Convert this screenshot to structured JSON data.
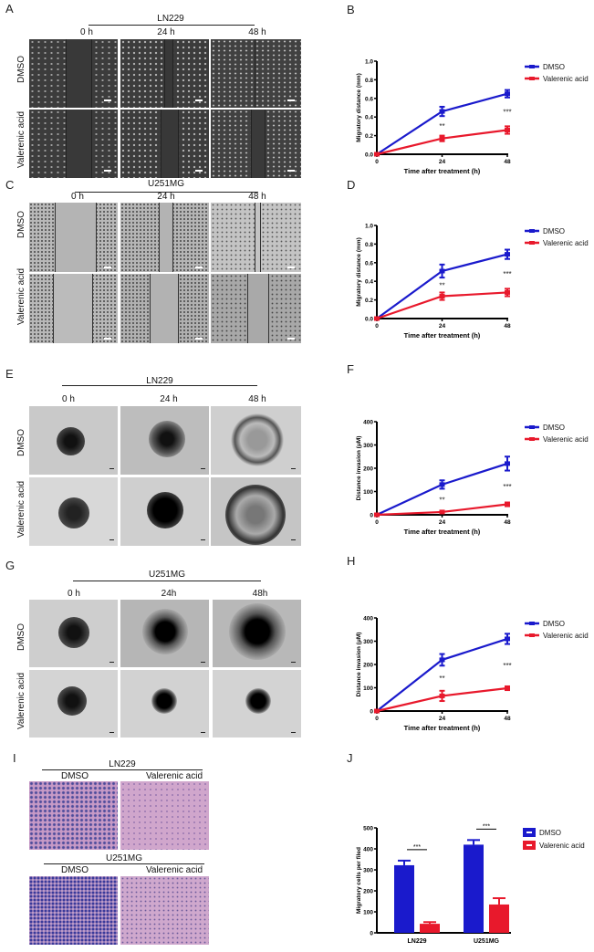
{
  "figure": {
    "panels": {
      "A": {
        "letter": "A",
        "cell_line": "LN229",
        "times": [
          "0 h",
          "24 h",
          "48 h"
        ],
        "rows": [
          "DMSO",
          "Valerenic acid"
        ],
        "assay": "wound healing (fluorescent)"
      },
      "B": {
        "letter": "B"
      },
      "C": {
        "letter": "C",
        "cell_line": "U251MG",
        "times": [
          "0 h",
          "24 h",
          "48 h"
        ],
        "rows": [
          "DMSO",
          "Valerenic acid"
        ],
        "assay": "wound healing (brightfield)"
      },
      "D": {
        "letter": "D"
      },
      "E": {
        "letter": "E",
        "cell_line": "LN229",
        "times": [
          "0 h",
          "24 h",
          "48 h"
        ],
        "rows": [
          "DMSO",
          "Valerenic acid"
        ],
        "assay": "spheroid invasion"
      },
      "F": {
        "letter": "F"
      },
      "G": {
        "letter": "G",
        "cell_line": "U251MG",
        "times": [
          "0 h",
          "24h",
          "48h"
        ],
        "rows": [
          "DMSO",
          "Valerenic acid"
        ],
        "assay": "spheroid invasion"
      },
      "H": {
        "letter": "H"
      },
      "I": {
        "letter": "I",
        "groups": [
          {
            "cell_line": "LN229",
            "columns": [
              "DMSO",
              "Valerenic acid"
            ]
          },
          {
            "cell_line": "U251MG",
            "columns": [
              "DMSO",
              "Valerenic acid"
            ]
          }
        ],
        "assay": "transwell (crystal violet)"
      },
      "J": {
        "letter": "J"
      }
    },
    "colors": {
      "dmso": "#1a1acc",
      "valerenic": "#e8192c"
    }
  },
  "chart_data": [
    {
      "panel": "B",
      "type": "line",
      "title": "",
      "xlabel": "Time after treatment (h)",
      "ylabel": "Migratory distance (mm)",
      "x": [
        0,
        24,
        48
      ],
      "xticks": [
        "0",
        "24",
        "48"
      ],
      "ylim": [
        0,
        1.0
      ],
      "yticks": [
        "0.0",
        "0.2",
        "0.4",
        "0.6",
        "0.8",
        "1.0"
      ],
      "series": [
        {
          "name": "DMSO",
          "values": [
            0,
            0.46,
            0.65
          ],
          "errors": [
            0,
            0.05,
            0.04
          ],
          "color": "#1a1acc"
        },
        {
          "name": "Valerenic acid",
          "values": [
            0,
            0.17,
            0.26
          ],
          "errors": [
            0,
            0.03,
            0.04
          ],
          "color": "#e8192c"
        }
      ],
      "annotations": [
        {
          "x": 24,
          "text": "**"
        },
        {
          "x": 48,
          "text": "***"
        }
      ],
      "legend": {
        "position": "right",
        "entries": [
          "DMSO",
          "Valerenic acid"
        ]
      },
      "grid": false
    },
    {
      "panel": "D",
      "type": "line",
      "title": "",
      "xlabel": "Time after treatment (h)",
      "ylabel": "Migratory distance (mm)",
      "x": [
        0,
        24,
        48
      ],
      "xticks": [
        "0",
        "24",
        "48"
      ],
      "ylim": [
        0,
        1.0
      ],
      "yticks": [
        "0.0",
        "0.2",
        "0.4",
        "0.6",
        "0.8",
        "1.0"
      ],
      "series": [
        {
          "name": "DMSO",
          "values": [
            0,
            0.51,
            0.69
          ],
          "errors": [
            0,
            0.07,
            0.05
          ],
          "color": "#1a1acc"
        },
        {
          "name": "Valerenic acid",
          "values": [
            0,
            0.24,
            0.28
          ],
          "errors": [
            0,
            0.04,
            0.04
          ],
          "color": "#e8192c"
        }
      ],
      "annotations": [
        {
          "x": 24,
          "text": "**"
        },
        {
          "x": 48,
          "text": "***"
        }
      ],
      "legend": {
        "position": "right",
        "entries": [
          "DMSO",
          "Valerenic acid"
        ]
      },
      "grid": false
    },
    {
      "panel": "F",
      "type": "line",
      "title": "",
      "xlabel": "Time after treatment (h)",
      "ylabel": "Distance invasion (μM)",
      "x": [
        0,
        24,
        48
      ],
      "xticks": [
        "0",
        "24",
        "48"
      ],
      "ylim": [
        0,
        400
      ],
      "yticks": [
        "0",
        "100",
        "200",
        "300",
        "400"
      ],
      "series": [
        {
          "name": "DMSO",
          "values": [
            0,
            130,
            220
          ],
          "errors": [
            0,
            18,
            30
          ],
          "color": "#1a1acc"
        },
        {
          "name": "Valerenic acid",
          "values": [
            0,
            12,
            45
          ],
          "errors": [
            0,
            4,
            8
          ],
          "color": "#e8192c"
        }
      ],
      "annotations": [
        {
          "x": 24,
          "text": "**"
        },
        {
          "x": 48,
          "text": "***"
        }
      ],
      "legend": {
        "position": "right",
        "entries": [
          "DMSO",
          "Valerenic acid"
        ]
      },
      "grid": false
    },
    {
      "panel": "H",
      "type": "line",
      "title": "",
      "xlabel": "Time after treatment (h)",
      "ylabel": "Distance invasion (μM)",
      "x": [
        0,
        24,
        48
      ],
      "xticks": [
        "0",
        "24",
        "48"
      ],
      "ylim": [
        0,
        400
      ],
      "yticks": [
        "0",
        "100",
        "200",
        "300",
        "400"
      ],
      "series": [
        {
          "name": "DMSO",
          "values": [
            0,
            220,
            310
          ],
          "errors": [
            0,
            25,
            22
          ],
          "color": "#1a1acc"
        },
        {
          "name": "Valerenic acid",
          "values": [
            0,
            65,
            98
          ],
          "errors": [
            0,
            22,
            8
          ],
          "color": "#e8192c"
        }
      ],
      "annotations": [
        {
          "x": 24,
          "text": "**"
        },
        {
          "x": 48,
          "text": "***"
        }
      ],
      "legend": {
        "position": "right",
        "entries": [
          "DMSO",
          "Valerenic acid"
        ]
      },
      "grid": false
    },
    {
      "panel": "J",
      "type": "bar",
      "title": "",
      "xlabel": "",
      "ylabel": "Migratory cells per filed",
      "categories": [
        "LN229",
        "U251MG"
      ],
      "ylim": [
        0,
        500
      ],
      "yticks": [
        "0",
        "100",
        "200",
        "300",
        "400",
        "500"
      ],
      "series": [
        {
          "name": "DMSO",
          "values": [
            322,
            420
          ],
          "errors": [
            22,
            22
          ],
          "color": "#1a1acc"
        },
        {
          "name": "Valerenic acid",
          "values": [
            43,
            135
          ],
          "errors": [
            8,
            30
          ],
          "color": "#e8192c"
        }
      ],
      "annotations": [
        {
          "category": "LN229",
          "text": "***"
        },
        {
          "category": "U251MG",
          "text": "***"
        }
      ],
      "legend": {
        "position": "right",
        "entries": [
          "DMSO",
          "Valerenic acid"
        ]
      },
      "grid": false
    }
  ]
}
